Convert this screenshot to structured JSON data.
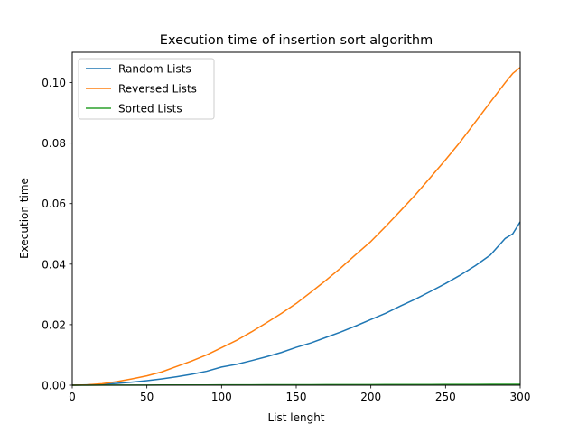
{
  "chart_data": {
    "type": "line",
    "title": "Execution time of insertion sort algorithm",
    "xlabel": "List lenght",
    "ylabel": "Execution time",
    "xlim": [
      0,
      300
    ],
    "ylim": [
      0,
      0.11
    ],
    "xticks": [
      0,
      50,
      100,
      150,
      200,
      250,
      300
    ],
    "xtick_labels": [
      "0",
      "50",
      "100",
      "150",
      "200",
      "250",
      "300"
    ],
    "yticks": [
      0,
      0.02,
      0.04,
      0.06,
      0.08,
      0.1
    ],
    "ytick_labels": [
      "0.00",
      "0.02",
      "0.04",
      "0.06",
      "0.08",
      "0.10"
    ],
    "grid": false,
    "legend_position": "top-left",
    "x": [
      0,
      10,
      20,
      30,
      40,
      50,
      60,
      70,
      80,
      90,
      100,
      110,
      120,
      130,
      140,
      150,
      160,
      170,
      180,
      190,
      200,
      210,
      220,
      230,
      240,
      250,
      260,
      270,
      280,
      290,
      295,
      300
    ],
    "series": [
      {
        "name": "Random Lists",
        "color": "#1f77b4",
        "values": [
          0,
          0.0001,
          0.0003,
          0.0006,
          0.001,
          0.0015,
          0.0021,
          0.0028,
          0.0036,
          0.0046,
          0.006,
          0.0069,
          0.0081,
          0.0094,
          0.0108,
          0.0125,
          0.014,
          0.0158,
          0.0176,
          0.0196,
          0.0217,
          0.0238,
          0.0262,
          0.0285,
          0.031,
          0.0336,
          0.0364,
          0.0395,
          0.043,
          0.0485,
          0.05,
          0.054
        ]
      },
      {
        "name": "Reversed Lists",
        "color": "#ff7f0e",
        "values": [
          0,
          0.0001,
          0.0005,
          0.0012,
          0.0021,
          0.0031,
          0.0044,
          0.0062,
          0.008,
          0.01,
          0.0124,
          0.0148,
          0.0176,
          0.0206,
          0.0237,
          0.027,
          0.0308,
          0.0347,
          0.0388,
          0.0432,
          0.0475,
          0.0525,
          0.0577,
          0.063,
          0.0687,
          0.0745,
          0.0805,
          0.087,
          0.0935,
          0.1,
          0.103,
          0.105
        ]
      },
      {
        "name": "Sorted Lists",
        "color": "#2ca02c",
        "values": [
          0,
          1e-05,
          2e-05,
          3e-05,
          4e-05,
          5e-05,
          6e-05,
          7e-05,
          8e-05,
          9e-05,
          0.0001,
          0.00011,
          0.00012,
          0.00013,
          0.00014,
          0.00015,
          0.00016,
          0.00017,
          0.00018,
          0.00019,
          0.0002,
          0.00021,
          0.00022,
          0.00023,
          0.00024,
          0.00025,
          0.00026,
          0.00027,
          0.00028,
          0.00029,
          0.0003,
          0.0003
        ]
      }
    ]
  }
}
